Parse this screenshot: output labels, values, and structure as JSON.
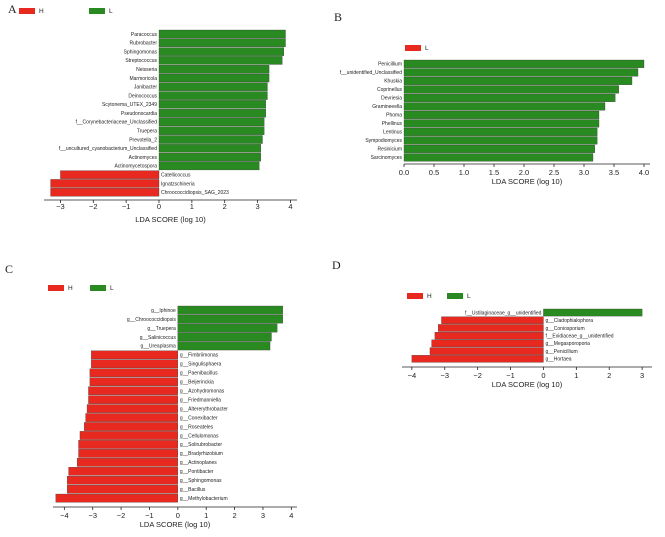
{
  "colors": {
    "H": "#e8291f",
    "L": "#2a8a22",
    "axis": "#222222"
  },
  "chart_data": [
    {
      "panel": "A",
      "type": "bar",
      "orientation": "horizontal",
      "legend": [
        {
          "name": "H",
          "color": "#e8291f"
        },
        {
          "name": "L",
          "color": "#2a8a22"
        }
      ],
      "xlabel": "LDA SCORE (log 10)",
      "xlim": [
        -3.5,
        4.2
      ],
      "xticks": [
        -3,
        -2,
        -1,
        0,
        1,
        2,
        3,
        4
      ],
      "categories": [
        "Paracoccus",
        "Rubrobacter",
        "Sphingomonas",
        "Streptococcus",
        "Neisseria",
        "Marmoricola",
        "Janibacter",
        "Deinococcus",
        "Scytonema_UTEX_2349",
        "Pseudonocardia",
        "f__Corynebacteriaceae_Unclassified",
        "Truepera",
        "Prevotella_2",
        "f__uncultured_cyanobacterium_Unclassified",
        "Actinomyces",
        "Actinomycetospora",
        "Catellicoccus",
        "Ignatzschineria",
        "Chroococcidiopsis_SAG_2023"
      ],
      "groups": [
        "L",
        "L",
        "L",
        "L",
        "L",
        "L",
        "L",
        "L",
        "L",
        "L",
        "L",
        "L",
        "L",
        "L",
        "L",
        "L",
        "H",
        "H",
        "H"
      ],
      "values": [
        3.85,
        3.85,
        3.8,
        3.75,
        3.35,
        3.35,
        3.3,
        3.3,
        3.25,
        3.25,
        3.2,
        3.2,
        3.15,
        3.1,
        3.1,
        3.05,
        -3.0,
        -3.3,
        -3.3
      ]
    },
    {
      "panel": "B",
      "type": "bar",
      "orientation": "horizontal",
      "legend": [
        {
          "name": "L",
          "color": "#e8291f"
        }
      ],
      "xlabel": "LDA SCORE (log 10)",
      "xlim": [
        0,
        4.1
      ],
      "xticks": [
        0.0,
        0.5,
        1.0,
        1.5,
        2.0,
        2.5,
        3.0,
        3.5,
        4.0
      ],
      "categories": [
        "Penicillium",
        "f__unidentified_Unclassified",
        "Khuskia",
        "Coprinellus",
        "Devriesia",
        "Gramineeella",
        "Phoma",
        "Phellinus",
        "Lentinus",
        "Sympodiomyces",
        "Resinicium",
        "Sarcinomyces"
      ],
      "groups": [
        "L",
        "L",
        "L",
        "L",
        "L",
        "L",
        "L",
        "L",
        "L",
        "L",
        "L",
        "L"
      ],
      "values": [
        4.0,
        3.9,
        3.8,
        3.58,
        3.52,
        3.35,
        3.25,
        3.25,
        3.22,
        3.22,
        3.18,
        3.15
      ]
    },
    {
      "panel": "C",
      "type": "bar",
      "orientation": "horizontal",
      "legend": [
        {
          "name": "H",
          "color": "#e8291f"
        },
        {
          "name": "L",
          "color": "#2a8a22"
        }
      ],
      "xlabel": "LDA SCORE (log 10)",
      "xlim": [
        -4.4,
        4.2
      ],
      "xticks": [
        -4,
        -3,
        -2,
        -1,
        0,
        1,
        2,
        3,
        4
      ],
      "categories": [
        "g__Iphinoe",
        "g__Chroococcidiopsis",
        "g__Truepera",
        "g__Salinicoccus",
        "g__Ureaplasma",
        "g__Fimbriimonas",
        "g__Singulisphaera",
        "g__Paenibacillus",
        "g__Beijerinckia",
        "g__Azohydromonas",
        "g__Friedmanniella",
        "g__Altererythrobacter",
        "g__Conexibacter",
        "g__Roseateles",
        "g__Cellulomonas",
        "g__Solirubrobacter",
        "g__Bradyrhizobium",
        "g__Actinoplanes",
        "g__Pontibacter",
        "g__Sphingomonas",
        "g__Bacillus",
        "g__Methylobacterium"
      ],
      "groups": [
        "L",
        "L",
        "L",
        "L",
        "L",
        "H",
        "H",
        "H",
        "H",
        "H",
        "H",
        "H",
        "H",
        "H",
        "H",
        "H",
        "H",
        "H",
        "H",
        "H",
        "H",
        "H"
      ],
      "values": [
        3.7,
        3.7,
        3.5,
        3.3,
        3.25,
        -3.05,
        -3.05,
        -3.1,
        -3.1,
        -3.15,
        -3.15,
        -3.2,
        -3.25,
        -3.3,
        -3.45,
        -3.5,
        -3.5,
        -3.55,
        -3.85,
        -3.9,
        -3.9,
        -4.3
      ]
    },
    {
      "panel": "D",
      "type": "bar",
      "orientation": "horizontal",
      "legend": [
        {
          "name": "H",
          "color": "#e8291f"
        },
        {
          "name": "L",
          "color": "#2a8a22"
        }
      ],
      "xlabel": "LDA SCORE (log 10)",
      "xlim": [
        -4.3,
        3.3
      ],
      "xticks": [
        -4,
        -3,
        -2,
        -1,
        0,
        1,
        2,
        3
      ],
      "categories": [
        "f__Ustilaginaceae_g__unidentified",
        "g__Cladophialophora",
        "g__Coniosporium",
        "f__Exidiaceae_g__unidentified",
        "g__Megasporoporia",
        "g__Penicillium",
        "g__Hortaea"
      ],
      "groups": [
        "L",
        "H",
        "H",
        "H",
        "H",
        "H",
        "H"
      ],
      "values": [
        3.0,
        -3.1,
        -3.2,
        -3.3,
        -3.4,
        -3.45,
        -4.0
      ]
    }
  ]
}
